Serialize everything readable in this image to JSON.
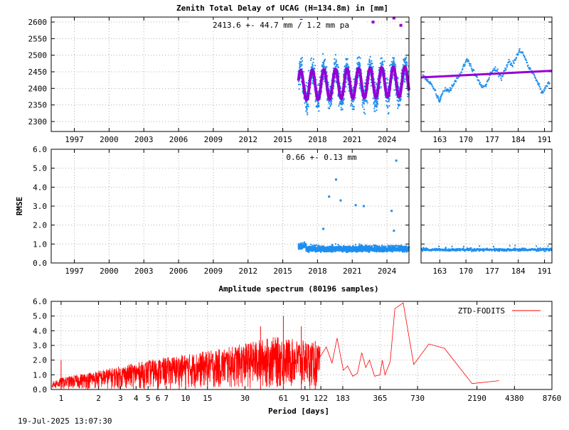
{
  "title": "Zenith Total Delay of UCAG (H=134.8m) in [mm]",
  "timestamp": "19-Jul-2025 13:07:30",
  "colors": {
    "point_blue": "#1e8fef",
    "model_purple": "#9400d3",
    "spectrum_red": "#ff0000",
    "grid": "#b0b0b0"
  },
  "chart_data": [
    {
      "id": "ztd-long",
      "type": "scatter",
      "annotation": "2413.6 +-  44.7 mm /  1.2 mm pa",
      "ylim": [
        2270,
        2615
      ],
      "yticks": [
        2300,
        2350,
        2400,
        2450,
        2500,
        2550,
        2600
      ],
      "xlim": [
        1995.0,
        2025.9
      ],
      "xticks": [
        1997,
        2000,
        2003,
        2006,
        2009,
        2012,
        2015,
        2018,
        2021,
        2024
      ],
      "data_start": 2016.35,
      "series": {
        "mean": 2413.6,
        "annual_amplitude": 50,
        "scatter": 44.7,
        "trend_per_year": 1.2
      },
      "outliers": [
        {
          "x": 2016.6,
          "y": 2605
        },
        {
          "x": 2017.9,
          "y": 2598
        },
        {
          "x": 2019.6,
          "y": 2600
        },
        {
          "x": 2020.4,
          "y": 2597
        },
        {
          "x": 2022.8,
          "y": 2600
        },
        {
          "x": 2024.6,
          "y": 2612
        },
        {
          "x": 2025.2,
          "y": 2590
        }
      ]
    },
    {
      "id": "ztd-recent",
      "type": "scatter",
      "ylim": [
        2270,
        2615
      ],
      "xlim": [
        158,
        193
      ],
      "xticks": [
        163,
        170,
        177,
        184,
        191
      ],
      "trend": [
        [
          158,
          2433
        ],
        [
          193,
          2453
        ]
      ],
      "points": [
        [
          158.5,
          2440
        ],
        [
          159.5,
          2428
        ],
        [
          160.5,
          2415
        ],
        [
          161.5,
          2398
        ],
        [
          162.5,
          2372
        ],
        [
          163,
          2360
        ],
        [
          163.5,
          2380
        ],
        [
          164.5,
          2400
        ],
        [
          165.5,
          2392
        ],
        [
          166.5,
          2410
        ],
        [
          167.5,
          2430
        ],
        [
          168.5,
          2442
        ],
        [
          169.5,
          2470
        ],
        [
          170.5,
          2490
        ],
        [
          171.5,
          2462
        ],
        [
          172.5,
          2440
        ],
        [
          173.5,
          2420
        ],
        [
          174.5,
          2400
        ],
        [
          175.5,
          2415
        ],
        [
          176.5,
          2440
        ],
        [
          177.5,
          2458
        ],
        [
          178.5,
          2450
        ],
        [
          179.5,
          2432
        ],
        [
          180.5,
          2460
        ],
        [
          181.5,
          2480
        ],
        [
          182.5,
          2470
        ],
        [
          183.5,
          2495
        ],
        [
          184.5,
          2515
        ],
        [
          185.5,
          2500
        ],
        [
          186.5,
          2470
        ],
        [
          187.5,
          2452
        ],
        [
          188.5,
          2435
        ],
        [
          189.5,
          2410
        ],
        [
          190.5,
          2385
        ],
        [
          191.5,
          2410
        ],
        [
          192.5,
          2420
        ]
      ]
    },
    {
      "id": "rmse-long",
      "type": "scatter",
      "ylabel": "RMSE",
      "annotation": "0.66 +-  0.13 mm",
      "ylim": [
        0.0,
        6.0
      ],
      "yticks": [
        "0.0",
        "1.0",
        "2.0",
        "3.0",
        "4.0",
        "5.0",
        "6.0"
      ],
      "xlim": [
        1995.0,
        2025.9
      ],
      "xticks": [
        1997,
        2000,
        2003,
        2006,
        2009,
        2012,
        2015,
        2018,
        2021,
        2024
      ],
      "data_start": 2016.35,
      "series": {
        "mean": 0.66,
        "scatter": 0.13
      },
      "outliers": [
        {
          "x": 2019.6,
          "y": 4.4
        },
        {
          "x": 2019.0,
          "y": 3.5
        },
        {
          "x": 2020.0,
          "y": 3.3
        },
        {
          "x": 2021.3,
          "y": 3.05
        },
        {
          "x": 2022.0,
          "y": 3.0
        },
        {
          "x": 2024.8,
          "y": 5.4
        },
        {
          "x": 2024.4,
          "y": 2.75
        },
        {
          "x": 2024.6,
          "y": 1.7
        },
        {
          "x": 2018.5,
          "y": 1.8
        }
      ]
    },
    {
      "id": "rmse-recent",
      "type": "scatter",
      "ylim": [
        0.0,
        6.0
      ],
      "xlim": [
        158,
        193
      ],
      "xticks": [
        163,
        170,
        177,
        184,
        191
      ],
      "level": 0.7
    },
    {
      "id": "spectrum",
      "type": "line",
      "title": "Amplitude spectrum (80196 samples)",
      "xlabel": "Period [days]",
      "legend": "ZTD-FODITS",
      "legend_position": "top-right",
      "xscale": "log",
      "xlim": [
        0.833,
        8760
      ],
      "ylim": [
        0.0,
        6.0
      ],
      "xticks": [
        "1",
        "2",
        "3",
        "4",
        "5",
        "6",
        "7",
        "10",
        "15",
        "30",
        "61",
        "91",
        "122",
        "183",
        "365",
        "730",
        "2190",
        "4380",
        "8760"
      ],
      "xtick_values": [
        1,
        2,
        3,
        4,
        5,
        6,
        7,
        10,
        15,
        30,
        61,
        91,
        122,
        183,
        365,
        730,
        2190,
        4380,
        8760
      ],
      "yticks": [
        "0.0",
        "1.0",
        "2.0",
        "3.0",
        "4.0",
        "5.0",
        "6.0"
      ],
      "envelope": [
        [
          0.85,
          0.55
        ],
        [
          1,
          0.8
        ],
        [
          2,
          1.3
        ],
        [
          3,
          1.6
        ],
        [
          5,
          2.0
        ],
        [
          10,
          2.4
        ],
        [
          20,
          2.8
        ],
        [
          50,
          3.6
        ],
        [
          100,
          3.3
        ],
        [
          150,
          2.5
        ]
      ],
      "peaks": [
        [
          1.0,
          2.0
        ],
        [
          61,
          5.0
        ],
        [
          40,
          4.3
        ],
        [
          85,
          4.3
        ],
        [
          110,
          3.3
        ]
      ],
      "tail": [
        [
          120,
          2.2
        ],
        [
          135,
          2.9
        ],
        [
          150,
          1.8
        ],
        [
          165,
          3.5
        ],
        [
          185,
          1.3
        ],
        [
          200,
          1.6
        ],
        [
          220,
          0.9
        ],
        [
          240,
          1.1
        ],
        [
          260,
          2.5
        ],
        [
          280,
          1.5
        ],
        [
          300,
          2.0
        ],
        [
          330,
          0.9
        ],
        [
          365,
          1.0
        ],
        [
          380,
          2.0
        ],
        [
          400,
          1.0
        ],
        [
          440,
          1.9
        ],
        [
          480,
          5.5
        ],
        [
          560,
          5.9
        ],
        [
          680,
          1.7
        ],
        [
          900,
          3.1
        ],
        [
          1200,
          2.8
        ],
        [
          2000,
          0.4
        ],
        [
          3300,
          0.6
        ]
      ]
    }
  ]
}
